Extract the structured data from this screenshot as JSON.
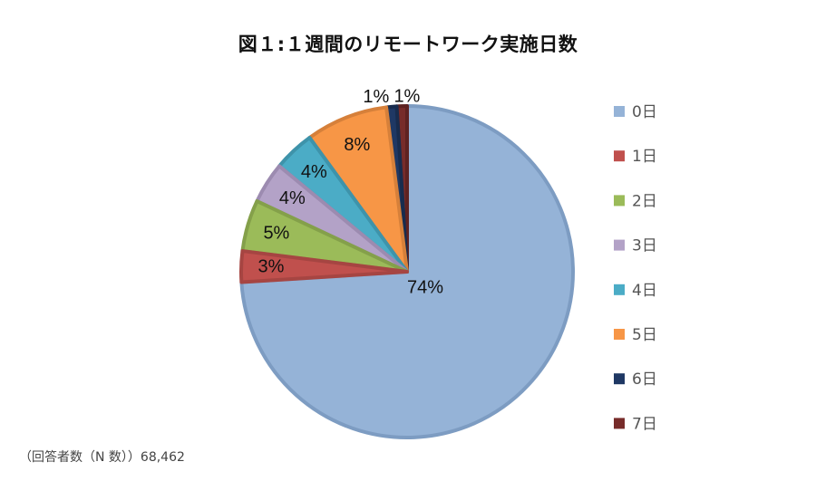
{
  "title": "図１:１週間のリモートワーク実施日数",
  "note": "（回答者数（N 数））68,462",
  "chart_data": {
    "type": "pie",
    "legend_position": "right",
    "slices": [
      {
        "label": "0日",
        "value": 74,
        "pct_label": "74%",
        "color": "#95B3D7",
        "border": "#7D9CC2"
      },
      {
        "label": "1日",
        "value": 3,
        "pct_label": "3%",
        "color": "#C0504D",
        "border": "#A64542"
      },
      {
        "label": "2日",
        "value": 5,
        "pct_label": "5%",
        "color": "#9BBB59",
        "border": "#84A04A"
      },
      {
        "label": "3日",
        "value": 4,
        "pct_label": "4%",
        "color": "#B3A2C7",
        "border": "#9C8BB0"
      },
      {
        "label": "4日",
        "value": 4,
        "pct_label": "4%",
        "color": "#4BACC6",
        "border": "#3E93AA"
      },
      {
        "label": "5日",
        "value": 8,
        "pct_label": "8%",
        "color": "#F79646",
        "border": "#D6803A"
      },
      {
        "label": "6日",
        "value": 1,
        "pct_label": "1%",
        "color": "#1F3864",
        "border": "#182C4E"
      },
      {
        "label": "7日",
        "value": 1,
        "pct_label": "1%",
        "color": "#772C2A",
        "border": "#5E2221"
      }
    ]
  }
}
